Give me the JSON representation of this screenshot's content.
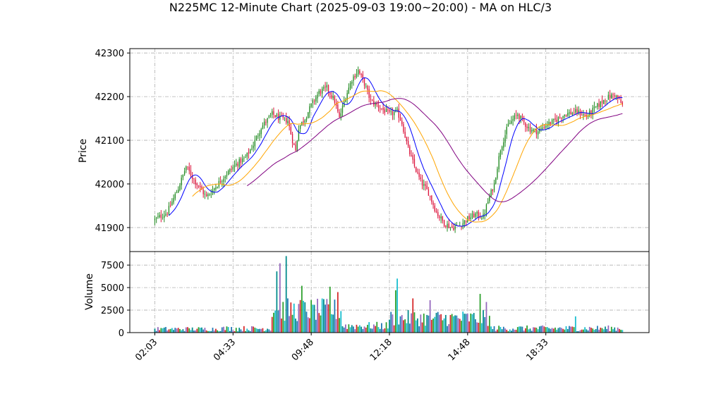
{
  "chart_data": {
    "type": "candlestick",
    "title": "N225MC 12-Minute Chart (2025-09-03 19:00~20:00) - MA on HLC/3",
    "price_panel": {
      "ylabel": "Price",
      "ylim": [
        41845,
        42310
      ],
      "yticks": [
        41900,
        42000,
        42100,
        42200,
        42300
      ],
      "grid": true
    },
    "volume_panel": {
      "ylabel": "Volume",
      "ylim": [
        0,
        9000
      ],
      "yticks": [
        0,
        2500,
        5000,
        7500
      ],
      "grid": true
    },
    "x_tick_labels": [
      "02:03",
      "04:33",
      "09:48",
      "12:18",
      "14:48",
      "18:33"
    ],
    "x_tick_positions": [
      0,
      50,
      100,
      150,
      200,
      250
    ],
    "x_range": [
      -16,
      316
    ],
    "bar_count": 300,
    "price_path_anchors": [
      [
        0,
        41918
      ],
      [
        8,
        41935
      ],
      [
        15,
        41990
      ],
      [
        20,
        42040
      ],
      [
        25,
        42010
      ],
      [
        30,
        41985
      ],
      [
        33,
        41970
      ],
      [
        38,
        41990
      ],
      [
        45,
        42020
      ],
      [
        52,
        42045
      ],
      [
        58,
        42060
      ],
      [
        63,
        42090
      ],
      [
        68,
        42130
      ],
      [
        75,
        42160
      ],
      [
        80,
        42150
      ],
      [
        85,
        42145
      ],
      [
        88,
        42100
      ],
      [
        90,
        42075
      ],
      [
        92,
        42130
      ],
      [
        96,
        42150
      ],
      [
        100,
        42180
      ],
      [
        105,
        42210
      ],
      [
        110,
        42220
      ],
      [
        115,
        42190
      ],
      [
        118,
        42150
      ],
      [
        122,
        42200
      ],
      [
        126,
        42240
      ],
      [
        130,
        42260
      ],
      [
        134,
        42230
      ],
      [
        138,
        42190
      ],
      [
        142,
        42180
      ],
      [
        148,
        42165
      ],
      [
        150,
        42160
      ],
      [
        155,
        42165
      ],
      [
        158,
        42140
      ],
      [
        162,
        42080
      ],
      [
        166,
        42040
      ],
      [
        170,
        42005
      ],
      [
        175,
        41980
      ],
      [
        180,
        41935
      ],
      [
        185,
        41910
      ],
      [
        190,
        41900
      ],
      [
        195,
        41905
      ],
      [
        200,
        41920
      ],
      [
        205,
        41930
      ],
      [
        210,
        41925
      ],
      [
        213,
        41960
      ],
      [
        217,
        42000
      ],
      [
        221,
        42080
      ],
      [
        226,
        42135
      ],
      [
        232,
        42160
      ],
      [
        236,
        42140
      ],
      [
        240,
        42125
      ],
      [
        245,
        42120
      ],
      [
        250,
        42135
      ],
      [
        256,
        42145
      ],
      [
        262,
        42160
      ],
      [
        270,
        42165
      ],
      [
        276,
        42155
      ],
      [
        282,
        42175
      ],
      [
        288,
        42195
      ],
      [
        294,
        42205
      ],
      [
        299,
        42180
      ]
    ],
    "volume_spikes": [
      [
        78,
        6800
      ],
      [
        80,
        7700
      ],
      [
        84,
        8500
      ],
      [
        85,
        3800
      ],
      [
        94,
        5200
      ],
      [
        101,
        3100
      ],
      [
        112,
        5100
      ],
      [
        117,
        4500
      ],
      [
        155,
        6000
      ],
      [
        165,
        3800
      ],
      [
        208,
        4300
      ],
      [
        212,
        3400
      ],
      [
        154,
        4700
      ],
      [
        176,
        3600
      ],
      [
        269,
        1800
      ]
    ],
    "moving_averages": [
      {
        "color": "#0000ff",
        "window": 10
      },
      {
        "color": "#ffa500",
        "window": 25
      },
      {
        "color": "#800080",
        "window": 60
      }
    ],
    "candle_colors": {
      "up": "#228b22",
      "down": "#dc143c"
    },
    "volume_colors": [
      "#008b8b",
      "#1f77b4",
      "#9467bd",
      "#d62728",
      "#2ca02c",
      "#17becf"
    ]
  }
}
